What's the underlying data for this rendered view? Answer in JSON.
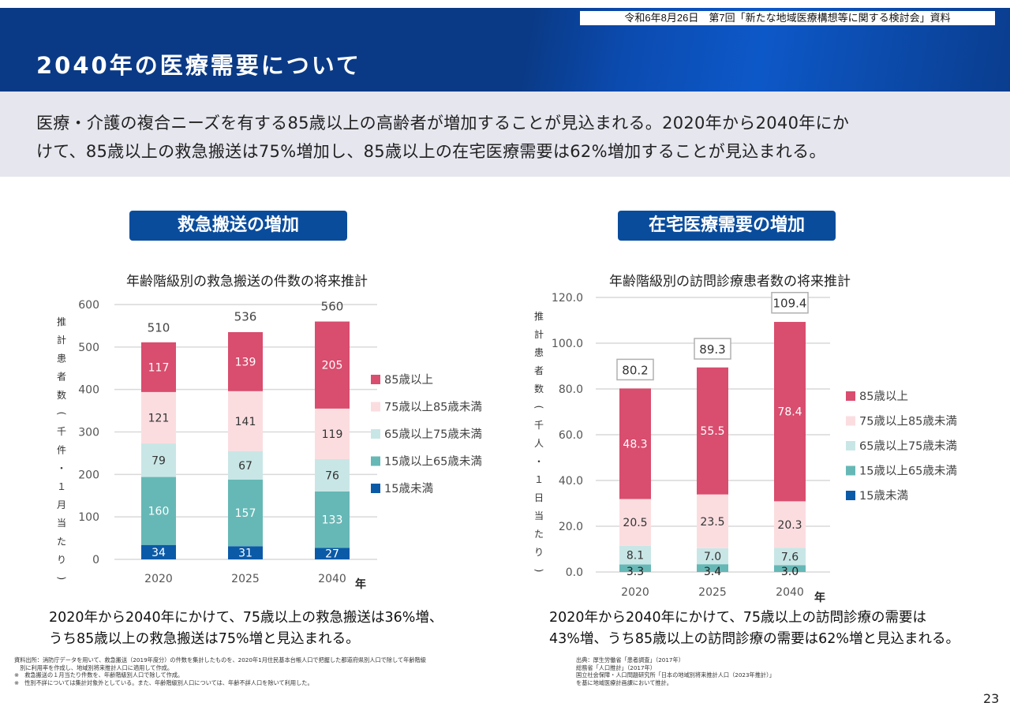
{
  "header": {
    "meeting_label": "令和6年8月26日　第7回「新たな地域医療構想等に関する検討会」資料",
    "title": "2040年の医療需要について"
  },
  "summary": {
    "line1": "医療・介護の複合ニーズを有する85歳以上の高齢者が増加することが見込まれる。2020年から2040年にか",
    "line2": "けて、85歳以上の救急搬送は75%増加し、85歳以上の在宅医療需要は62%増加することが見込まれる。"
  },
  "left_section": {
    "badge": "救急搬送の増加",
    "caption_line1": "2020年から2040年にかけて、75歳以上の救急搬送は36%増、",
    "caption_line2": "うち85歳以上の救急搬送は75%増と見込まれる。",
    "notes": [
      "資料出所：消防庁データを用いて、救急搬送（2019年度分）の件数を集計したものを、2020年1月住民基本台帳人口で把握した都道府県別人口で除して年齢階級",
      "　別に利用率を作成し、地域別将来推計人口に適用して作成。",
      "※　救急搬送の１月当たり件数を、年齢階級別人口で除して作成。",
      "※　性別不詳については集計対象外としている。また、年齢階級別人口については、年齢不詳人口を除いて利用した。"
    ]
  },
  "right_section": {
    "badge": "在宅医療需要の増加",
    "caption_line1": "2020年から2040年にかけて、75歳以上の訪問診療の需要は",
    "caption_line2": "43%増、うち85歳以上の訪問診療の需要は62%増と見込まれる。",
    "notes": [
      "出典：厚生労働省「患者調査」（2017年）",
      "総務省「人口推計」（2017年）",
      "国立社会保障・人口問題研究所「日本の地域別将来推計人口（2023年推計）」",
      "を基に地域医療計画課において推計。"
    ]
  },
  "colors": {
    "header_blue": "#0a3a86",
    "badge_blue": "#0a4c9c",
    "age85plus": "#d94d6e",
    "age75to85": "#fbdde0",
    "age65to75": "#c9e6e6",
    "age15to65": "#66b8b6",
    "under15": "#0b5aa8"
  },
  "chart_data": [
    {
      "type": "bar",
      "stacked": true,
      "title": "年齢階級別の救急搬送の件数の将来推計",
      "xlabel": "年",
      "ylabel": "推計患者数（千件・１月当たり）",
      "categories": [
        "2020",
        "2025",
        "2040"
      ],
      "ylim": [
        0,
        600
      ],
      "yticks": [
        "0",
        "100",
        "200",
        "300",
        "400",
        "500",
        "600"
      ],
      "ytick_values": [
        0,
        100,
        200,
        300,
        400,
        500,
        600
      ],
      "grid": true,
      "legend_position": "right",
      "series": [
        {
          "name": "15歳未満",
          "color": "#0b5aa8",
          "label_color": "#ffffff",
          "values": [
            34,
            31,
            27
          ]
        },
        {
          "name": "15歳以上65歳未満",
          "color": "#66b8b6",
          "label_color": "#ffffff",
          "values": [
            160,
            157,
            133
          ]
        },
        {
          "name": "65歳以上75歳未満",
          "color": "#c9e6e6",
          "label_color": "#333333",
          "values": [
            79,
            67,
            76
          ]
        },
        {
          "name": "75歳以上85歳未満",
          "color": "#fbdde0",
          "label_color": "#333333",
          "values": [
            121,
            141,
            119
          ]
        },
        {
          "name": "85歳以上",
          "color": "#d94d6e",
          "label_color": "#ffffff",
          "values": [
            117,
            139,
            205
          ]
        }
      ],
      "totals": [
        "510",
        "536",
        "560"
      ],
      "total_values": [
        510,
        536,
        560
      ],
      "boxed_totals": false
    },
    {
      "type": "bar",
      "stacked": true,
      "title": "年齢階級別の訪問診療患者数の将来推計",
      "xlabel": "年",
      "ylabel": "推計患者数（千人・１日当たり）",
      "categories": [
        "2020",
        "2025",
        "2040"
      ],
      "ylim": [
        0,
        120
      ],
      "yticks": [
        "0.0",
        "20.0",
        "40.0",
        "60.0",
        "80.0",
        "100.0",
        "120.0"
      ],
      "ytick_values": [
        0,
        20,
        40,
        60,
        80,
        100,
        120
      ],
      "grid": true,
      "legend_position": "right",
      "series": [
        {
          "name": "15歳未満",
          "color": "#0b5aa8",
          "label_color": "#ffffff",
          "values": [
            0,
            0,
            0
          ]
        },
        {
          "name": "15歳以上65歳未満",
          "color": "#66b8b6",
          "label_color": "#222222",
          "values": [
            3.3,
            3.4,
            3.0
          ],
          "labels": [
            "3.3",
            "3.4",
            "3.0"
          ]
        },
        {
          "name": "65歳以上75歳未満",
          "color": "#c9e6e6",
          "label_color": "#333333",
          "values": [
            8.1,
            7.0,
            7.6
          ],
          "labels": [
            "8.1",
            "7.0",
            "7.6"
          ]
        },
        {
          "name": "75歳以上85歳未満",
          "color": "#fbdde0",
          "label_color": "#333333",
          "values": [
            20.5,
            23.5,
            20.3
          ],
          "labels": [
            "20.5",
            "23.5",
            "20.3"
          ]
        },
        {
          "name": "85歳以上",
          "color": "#d94d6e",
          "label_color": "#ffffff",
          "values": [
            48.3,
            55.5,
            78.4
          ],
          "labels": [
            "48.3",
            "55.5",
            "78.4"
          ]
        }
      ],
      "totals": [
        "80.2",
        "89.3",
        "109.4"
      ],
      "total_values": [
        80.2,
        89.3,
        109.4
      ],
      "boxed_totals": true
    }
  ],
  "page_number": "23"
}
